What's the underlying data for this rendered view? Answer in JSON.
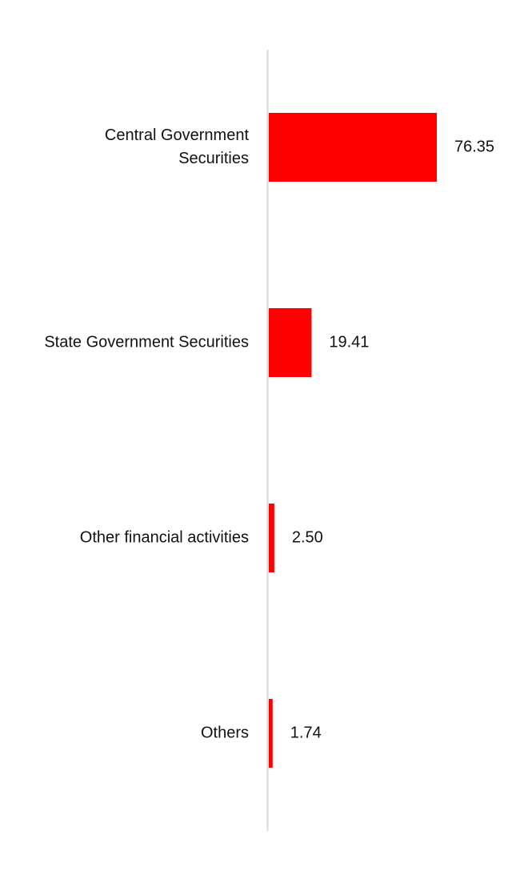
{
  "chart_data": {
    "type": "bar",
    "orientation": "horizontal",
    "categories": [
      "Central Government Securities",
      "State Government Securities",
      "Other financial activities",
      "Others"
    ],
    "category_label_lines": [
      [
        "Central Government",
        "Securities"
      ],
      [
        "State Government Securities"
      ],
      [
        "Other financial activities"
      ],
      [
        "Others"
      ]
    ],
    "values": [
      76.35,
      19.41,
      2.5,
      1.74
    ],
    "value_labels": [
      "76.35",
      "19.41",
      "2.50",
      "1.74"
    ],
    "title": "",
    "xlabel": "",
    "ylabel": "",
    "xlim": [
      0,
      76.35
    ],
    "grid": false,
    "legend": "none"
  },
  "colors": {
    "bar": "#ff0000",
    "axis": "#d9d9d9",
    "text": "#111111"
  }
}
